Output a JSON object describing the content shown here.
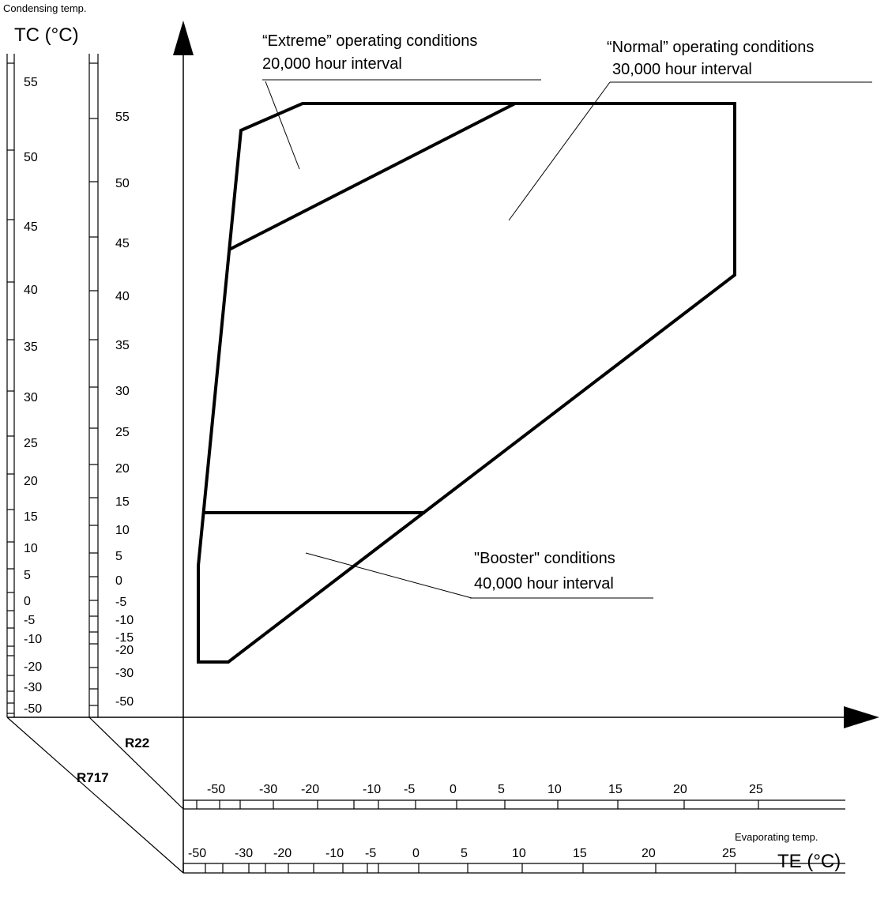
{
  "left_axis": {
    "caption": "Condensing temp.",
    "title": "TC (°C)",
    "r717_ticks": [
      "55",
      "50",
      "45",
      "40",
      "35",
      "30",
      "25",
      "20",
      "15",
      "10",
      "5",
      "0",
      "-5",
      "-10",
      "-20",
      "-30",
      "-50"
    ],
    "r22_ticks": [
      "55",
      "50",
      "45",
      "40",
      "35",
      "30",
      "25",
      "20",
      "15",
      "10",
      "5",
      "0",
      "-5",
      "-10",
      "-15",
      "-20",
      "-30",
      "-50"
    ]
  },
  "bottom_axis": {
    "caption": "Evaporating temp.",
    "title": "TE (°C)",
    "r22_ticks": [
      "-50",
      "-30",
      "-20",
      "-10",
      "-5",
      "0",
      "5",
      "10",
      "15",
      "20",
      "25"
    ],
    "r717_ticks": [
      "-50",
      "-30",
      "-20",
      "-10",
      "-5",
      "0",
      "5",
      "10",
      "15",
      "20",
      "25"
    ]
  },
  "refrigerants": {
    "r22": "R22",
    "r717": "R717"
  },
  "regions": {
    "extreme": {
      "line1": "“Extreme” operating conditions",
      "line2": "20,000 hour interval"
    },
    "normal": {
      "line1": "“Normal” operating conditions",
      "line2": "30,000 hour interval"
    },
    "booster": {
      "line1": "\"Booster\" conditions",
      "line2": "40,000 hour interval"
    }
  }
}
